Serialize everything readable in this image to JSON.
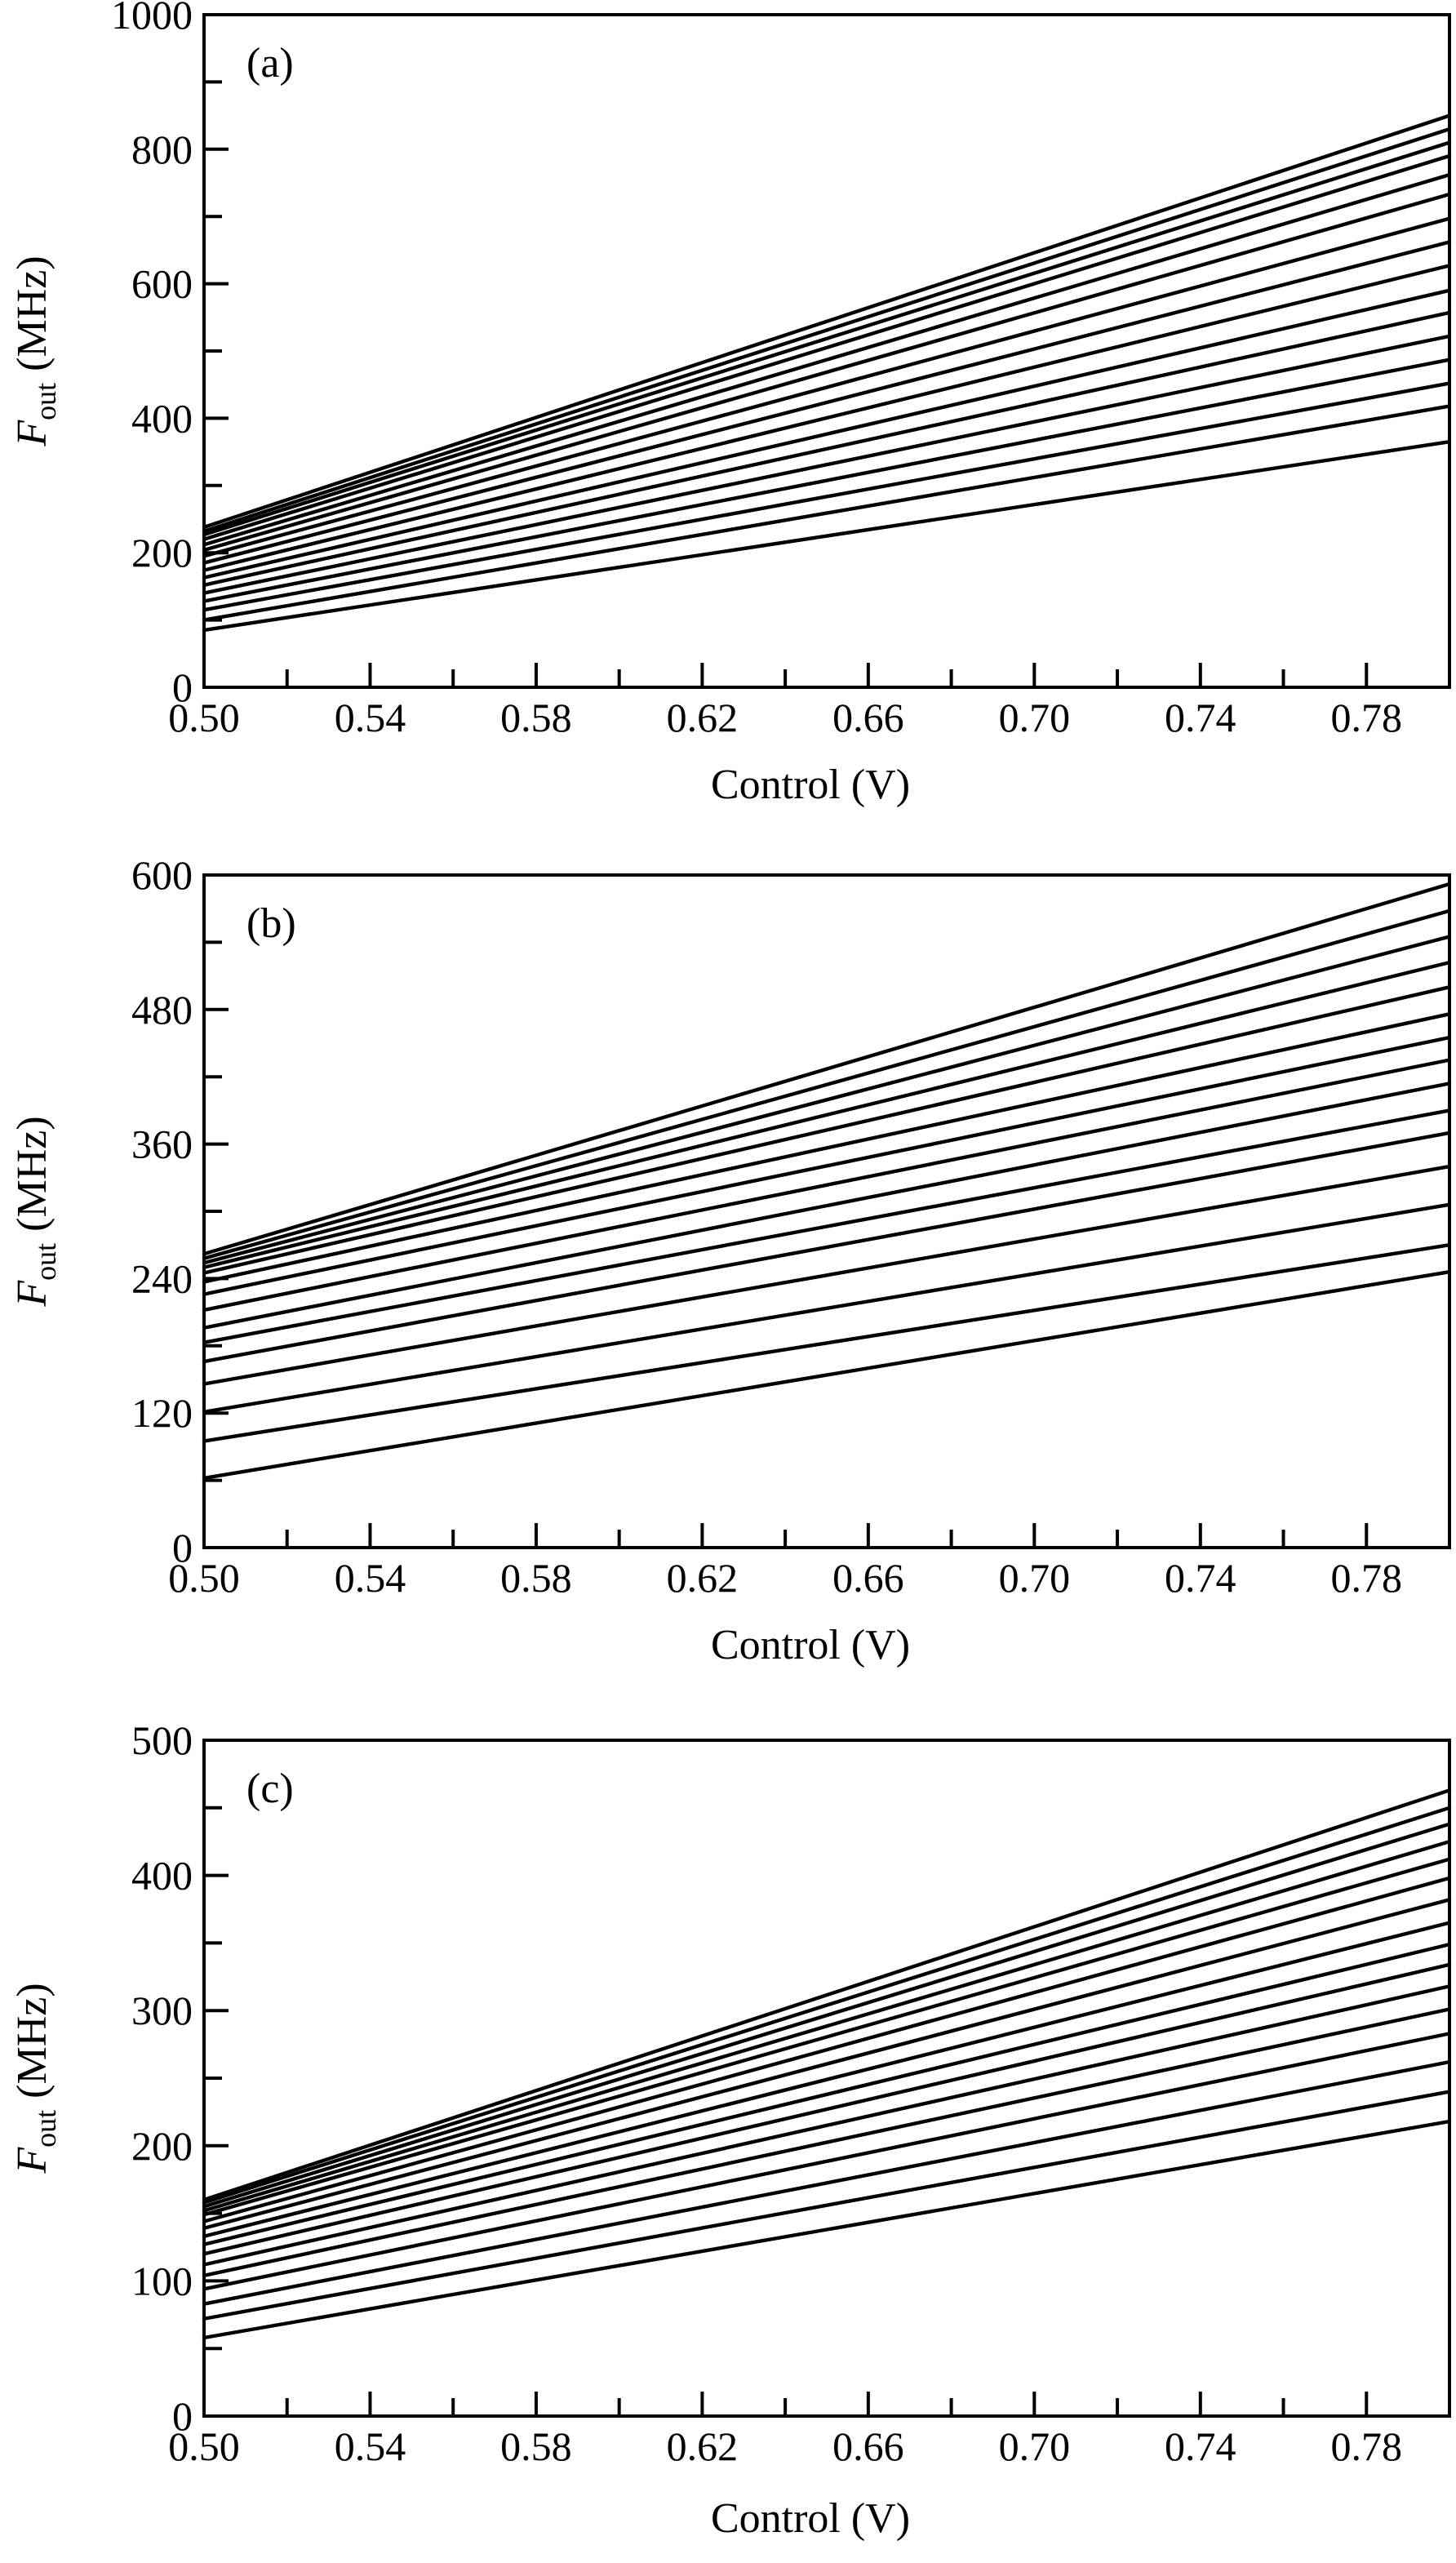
{
  "chart_data": [
    {
      "type": "line",
      "panel_label": "(a)",
      "xlabel": "Control (V)",
      "ylabel_main": "F",
      "ylabel_sub": "out",
      "ylabel_unit": "(MHz)",
      "xlim": [
        0.5,
        0.8
      ],
      "ylim": [
        0,
        1000
      ],
      "xticks": [
        0.5,
        0.52,
        0.54,
        0.56,
        0.58,
        0.6,
        0.62,
        0.64,
        0.66,
        0.68,
        0.7,
        0.72,
        0.74,
        0.76,
        0.78
      ],
      "xtick_labels": [
        "0.50",
        "0.54",
        "0.58",
        "0.62",
        "0.66",
        "0.70",
        "0.74",
        "0.78"
      ],
      "yticks": [
        0,
        100,
        200,
        300,
        400,
        500,
        600,
        700,
        800,
        900,
        1000
      ],
      "ytick_labels": [
        "0",
        "200",
        "400",
        "600",
        "800",
        "1000"
      ],
      "grid": false,
      "series": [
        {
          "x": [
            0.5,
            0.8
          ],
          "y": [
            85,
            365
          ]
        },
        {
          "x": [
            0.5,
            0.8
          ],
          "y": [
            100,
            418
          ]
        },
        {
          "x": [
            0.5,
            0.8
          ],
          "y": [
            115,
            452
          ]
        },
        {
          "x": [
            0.5,
            0.8
          ],
          "y": [
            128,
            487
          ]
        },
        {
          "x": [
            0.5,
            0.8
          ],
          "y": [
            140,
            522
          ]
        },
        {
          "x": [
            0.5,
            0.8
          ],
          "y": [
            152,
            557
          ]
        },
        {
          "x": [
            0.5,
            0.8
          ],
          "y": [
            163,
            590
          ]
        },
        {
          "x": [
            0.5,
            0.8
          ],
          "y": [
            174,
            627
          ]
        },
        {
          "x": [
            0.5,
            0.8
          ],
          "y": [
            185,
            662
          ]
        },
        {
          "x": [
            0.5,
            0.8
          ],
          "y": [
            195,
            697
          ]
        },
        {
          "x": [
            0.5,
            0.8
          ],
          "y": [
            204,
            733
          ]
        },
        {
          "x": [
            0.5,
            0.8
          ],
          "y": [
            212,
            762
          ]
        },
        {
          "x": [
            0.5,
            0.8
          ],
          "y": [
            220,
            790
          ]
        },
        {
          "x": [
            0.5,
            0.8
          ],
          "y": [
            227,
            810
          ]
        },
        {
          "x": [
            0.5,
            0.8
          ],
          "y": [
            232,
            830
          ]
        },
        {
          "x": [
            0.5,
            0.8
          ],
          "y": [
            238,
            850
          ]
        }
      ]
    },
    {
      "type": "line",
      "panel_label": "(b)",
      "xlabel": "Control (V)",
      "ylabel_main": "F",
      "ylabel_sub": "out",
      "ylabel_unit": "(MHz)",
      "xlim": [
        0.5,
        0.8
      ],
      "ylim": [
        0,
        600
      ],
      "xticks": [
        0.5,
        0.52,
        0.54,
        0.56,
        0.58,
        0.6,
        0.62,
        0.64,
        0.66,
        0.68,
        0.7,
        0.72,
        0.74,
        0.76,
        0.78
      ],
      "xtick_labels": [
        "0.50",
        "0.54",
        "0.58",
        "0.62",
        "0.66",
        "0.70",
        "0.74",
        "0.78"
      ],
      "yticks": [
        0,
        60,
        120,
        180,
        240,
        300,
        360,
        420,
        480,
        540,
        600
      ],
      "ytick_labels": [
        "0",
        "120",
        "240",
        "360",
        "480",
        "600"
      ],
      "grid": false,
      "series": [
        {
          "x": [
            0.5,
            0.8
          ],
          "y": [
            62,
            246
          ]
        },
        {
          "x": [
            0.5,
            0.8
          ],
          "y": [
            95,
            270
          ]
        },
        {
          "x": [
            0.5,
            0.8
          ],
          "y": [
            121,
            306
          ]
        },
        {
          "x": [
            0.5,
            0.8
          ],
          "y": [
            146,
            340
          ]
        },
        {
          "x": [
            0.5,
            0.8
          ],
          "y": [
            166,
            370
          ]
        },
        {
          "x": [
            0.5,
            0.8
          ],
          "y": [
            183,
            390
          ]
        },
        {
          "x": [
            0.5,
            0.8
          ],
          "y": [
            196,
            414
          ]
        },
        {
          "x": [
            0.5,
            0.8
          ],
          "y": [
            212,
            435
          ]
        },
        {
          "x": [
            0.5,
            0.8
          ],
          "y": [
            226,
            455
          ]
        },
        {
          "x": [
            0.5,
            0.8
          ],
          "y": [
            237,
            476
          ]
        },
        {
          "x": [
            0.5,
            0.8
          ],
          "y": [
            245,
            500
          ]
        },
        {
          "x": [
            0.5,
            0.8
          ],
          "y": [
            250,
            522
          ]
        },
        {
          "x": [
            0.5,
            0.8
          ],
          "y": [
            254,
            545
          ]
        },
        {
          "x": [
            0.5,
            0.8
          ],
          "y": [
            258,
            568
          ]
        },
        {
          "x": [
            0.5,
            0.8
          ],
          "y": [
            262,
            592
          ]
        }
      ]
    },
    {
      "type": "line",
      "panel_label": "(c)",
      "xlabel": "Control (V)",
      "ylabel_main": "F",
      "ylabel_sub": "out",
      "ylabel_unit": "(MHz)",
      "xlim": [
        0.5,
        0.8
      ],
      "ylim": [
        0,
        500
      ],
      "xticks": [
        0.5,
        0.52,
        0.54,
        0.56,
        0.58,
        0.6,
        0.62,
        0.64,
        0.66,
        0.68,
        0.7,
        0.72,
        0.74,
        0.76,
        0.78
      ],
      "xtick_labels": [
        "0.50",
        "0.54",
        "0.58",
        "0.62",
        "0.66",
        "0.70",
        "0.74",
        "0.78"
      ],
      "yticks": [
        0,
        50,
        100,
        150,
        200,
        250,
        300,
        350,
        400,
        450,
        500
      ],
      "ytick_labels": [
        "0",
        "100",
        "200",
        "300",
        "400",
        "500"
      ],
      "grid": false,
      "series": [
        {
          "x": [
            0.5,
            0.8
          ],
          "y": [
            58,
            218
          ]
        },
        {
          "x": [
            0.5,
            0.8
          ],
          "y": [
            72,
            240
          ]
        },
        {
          "x": [
            0.5,
            0.8
          ],
          "y": [
            83,
            262
          ]
        },
        {
          "x": [
            0.5,
            0.8
          ],
          "y": [
            94,
            283
          ]
        },
        {
          "x": [
            0.5,
            0.8
          ],
          "y": [
            104,
            301
          ]
        },
        {
          "x": [
            0.5,
            0.8
          ],
          "y": [
            112,
            318
          ]
        },
        {
          "x": [
            0.5,
            0.8
          ],
          "y": [
            120,
            334
          ]
        },
        {
          "x": [
            0.5,
            0.8
          ],
          "y": [
            127,
            349
          ]
        },
        {
          "x": [
            0.5,
            0.8
          ],
          "y": [
            133,
            365
          ]
        },
        {
          "x": [
            0.5,
            0.8
          ],
          "y": [
            139,
            382
          ]
        },
        {
          "x": [
            0.5,
            0.8
          ],
          "y": [
            144,
            398
          ]
        },
        {
          "x": [
            0.5,
            0.8
          ],
          "y": [
            149,
            412
          ]
        },
        {
          "x": [
            0.5,
            0.8
          ],
          "y": [
            152,
            425
          ]
        },
        {
          "x": [
            0.5,
            0.8
          ],
          "y": [
            155,
            438
          ]
        },
        {
          "x": [
            0.5,
            0.8
          ],
          "y": [
            158,
            450
          ]
        },
        {
          "x": [
            0.5,
            0.8
          ],
          "y": [
            160,
            463
          ]
        }
      ]
    }
  ]
}
